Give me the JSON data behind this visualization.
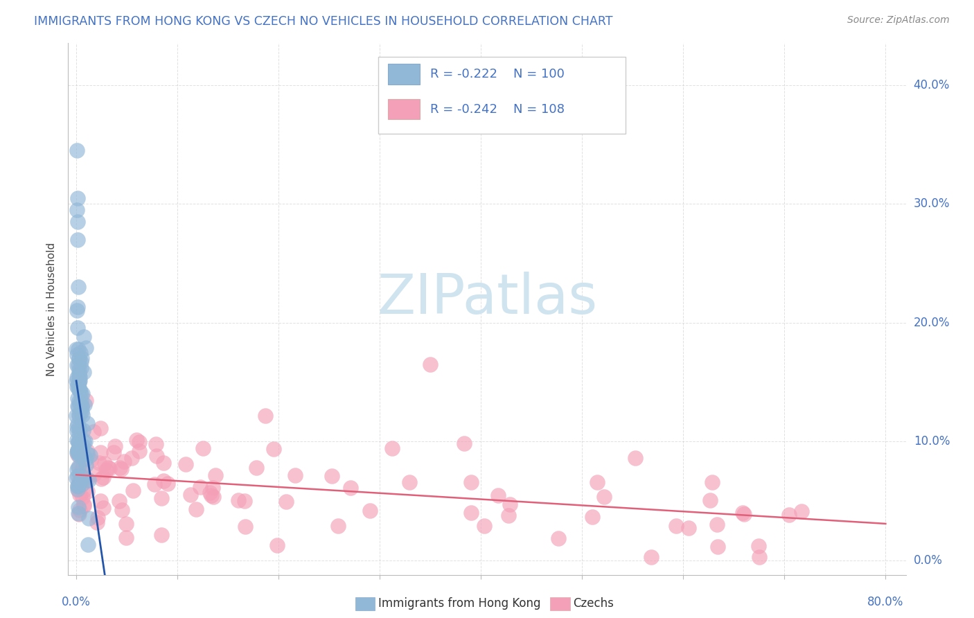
{
  "title": "IMMIGRANTS FROM HONG KONG VS CZECH NO VEHICLES IN HOUSEHOLD CORRELATION CHART",
  "source": "Source: ZipAtlas.com",
  "ylabel": "No Vehicles in Household",
  "blue_color": "#92b8d8",
  "pink_color": "#f4a0b8",
  "blue_line_color": "#2255aa",
  "pink_line_color": "#e0607a",
  "title_color": "#4472c4",
  "watermark_color": "#d0e4f0",
  "grid_color": "#cccccc",
  "axis_label_color": "#4472c4",
  "legend_border_color": "#cccccc",
  "xmin": 0.0,
  "xmax": 0.8,
  "ymin": 0.0,
  "ymax": 0.42,
  "ytick_vals": [
    0.0,
    0.1,
    0.2,
    0.3,
    0.4
  ],
  "ytick_right_labels": [
    "0.0%",
    "10.0%",
    "20.0%",
    "30.0%",
    "40.0%"
  ],
  "xtick_left_label": "0.0%",
  "xtick_right_label": "80.0%",
  "legend_r1_text": "R = -0.222",
  "legend_n1_text": "N = 100",
  "legend_r2_text": "R = -0.242",
  "legend_n2_text": "N = 108",
  "bottom_legend_label1": "Immigrants from Hong Kong",
  "bottom_legend_label2": "Czechs",
  "watermark": "ZIPatlas"
}
